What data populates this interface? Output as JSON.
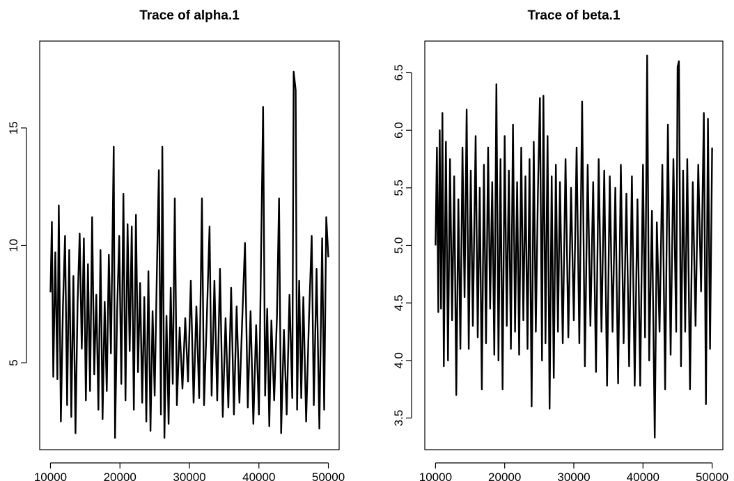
{
  "chart_data": [
    {
      "type": "line",
      "title": "Trace of alpha.1",
      "xlabel": "",
      "ylabel": "",
      "xlim": [
        8450,
        51550
      ],
      "ylim": [
        1.3,
        18.7
      ],
      "x_ticks": [
        "10000",
        "20000",
        "30000",
        "40000",
        "50000"
      ],
      "y_ticks": [
        "5",
        "10",
        "15"
      ],
      "x_tick_values": [
        10000,
        20000,
        30000,
        40000,
        50000
      ],
      "y_tick_values": [
        5,
        10,
        15
      ],
      "grid": false,
      "series": [
        {
          "values": [
            [
              10000,
              8.0
            ],
            [
              10200,
              11.0
            ],
            [
              10400,
              4.4
            ],
            [
              10700,
              9.7
            ],
            [
              11000,
              4.3
            ],
            [
              11200,
              11.7
            ],
            [
              11500,
              2.5
            ],
            [
              11800,
              7.4
            ],
            [
              12100,
              10.4
            ],
            [
              12400,
              3.2
            ],
            [
              12700,
              9.8
            ],
            [
              13000,
              2.7
            ],
            [
              13300,
              8.7
            ],
            [
              13600,
              2.0
            ],
            [
              13900,
              7.5
            ],
            [
              14200,
              10.5
            ],
            [
              14500,
              5.6
            ],
            [
              14800,
              10.3
            ],
            [
              15100,
              3.4
            ],
            [
              15400,
              9.2
            ],
            [
              15700,
              3.8
            ],
            [
              16000,
              11.2
            ],
            [
              16300,
              4.5
            ],
            [
              16600,
              7.9
            ],
            [
              16900,
              3.0
            ],
            [
              17200,
              9.8
            ],
            [
              17500,
              2.6
            ],
            [
              17800,
              7.6
            ],
            [
              18100,
              3.8
            ],
            [
              18400,
              9.6
            ],
            [
              18700,
              5.4
            ],
            [
              19100,
              14.2
            ],
            [
              19300,
              1.8
            ],
            [
              19600,
              7.2
            ],
            [
              19900,
              10.4
            ],
            [
              20200,
              4.1
            ],
            [
              20500,
              12.2
            ],
            [
              20800,
              3.4
            ],
            [
              21100,
              10.9
            ],
            [
              21400,
              5.5
            ],
            [
              21700,
              10.8
            ],
            [
              22000,
              3.0
            ],
            [
              22300,
              11.3
            ],
            [
              22600,
              4.6
            ],
            [
              22900,
              8.4
            ],
            [
              23200,
              3.3
            ],
            [
              23500,
              7.8
            ],
            [
              23800,
              2.5
            ],
            [
              24100,
              8.9
            ],
            [
              24400,
              2.1
            ],
            [
              24700,
              7.2
            ],
            [
              25000,
              3.6
            ],
            [
              25300,
              8.6
            ],
            [
              25600,
              13.2
            ],
            [
              25900,
              2.8
            ],
            [
              26100,
              14.2
            ],
            [
              26400,
              1.8
            ],
            [
              26700,
              7.0
            ],
            [
              27000,
              2.4
            ],
            [
              27300,
              8.2
            ],
            [
              27600,
              4.1
            ],
            [
              27900,
              12.0
            ],
            [
              28200,
              3.2
            ],
            [
              28600,
              6.5
            ],
            [
              29000,
              3.9
            ],
            [
              29400,
              6.9
            ],
            [
              29800,
              4.2
            ],
            [
              30200,
              8.5
            ],
            [
              30600,
              3.3
            ],
            [
              31000,
              7.4
            ],
            [
              31400,
              3.5
            ],
            [
              31800,
              12.0
            ],
            [
              32100,
              3.2
            ],
            [
              32500,
              6.8
            ],
            [
              32900,
              10.8
            ],
            [
              33200,
              3.6
            ],
            [
              33600,
              8.5
            ],
            [
              34000,
              3.4
            ],
            [
              34400,
              9.0
            ],
            [
              34800,
              2.7
            ],
            [
              35200,
              6.9
            ],
            [
              35600,
              3.1
            ],
            [
              36000,
              8.2
            ],
            [
              36400,
              2.8
            ],
            [
              36800,
              7.4
            ],
            [
              37200,
              3.3
            ],
            [
              37600,
              6.8
            ],
            [
              38000,
              10.1
            ],
            [
              38400,
              3.1
            ],
            [
              38800,
              7.2
            ],
            [
              39200,
              2.4
            ],
            [
              39600,
              6.6
            ],
            [
              40000,
              2.8
            ],
            [
              40300,
              9.4
            ],
            [
              40600,
              15.9
            ],
            [
              40900,
              3.6
            ],
            [
              41200,
              7.3
            ],
            [
              41500,
              2.3
            ],
            [
              41800,
              6.8
            ],
            [
              42200,
              3.4
            ],
            [
              42600,
              7.0
            ],
            [
              42900,
              12.0
            ],
            [
              43200,
              2.0
            ],
            [
              43600,
              6.4
            ],
            [
              44000,
              2.8
            ],
            [
              44400,
              7.9
            ],
            [
              44800,
              3.5
            ],
            [
              45000,
              17.4
            ],
            [
              45300,
              16.6
            ],
            [
              45500,
              3.0
            ],
            [
              45800,
              8.5
            ],
            [
              46100,
              3.5
            ],
            [
              46400,
              7.8
            ],
            [
              46800,
              2.5
            ],
            [
              47200,
              6.8
            ],
            [
              47600,
              10.4
            ],
            [
              47900,
              3.2
            ],
            [
              48300,
              9.0
            ],
            [
              48700,
              2.2
            ],
            [
              49100,
              10.3
            ],
            [
              49400,
              3.0
            ],
            [
              49700,
              11.2
            ],
            [
              50000,
              9.5
            ]
          ]
        }
      ]
    },
    {
      "type": "line",
      "title": "Trace of beta.1",
      "xlabel": "",
      "ylabel": "",
      "xlim": [
        8450,
        51550
      ],
      "ylim": [
        3.225,
        6.775
      ],
      "x_ticks": [
        "10000",
        "20000",
        "30000",
        "40000",
        "50000"
      ],
      "y_ticks": [
        "3.5",
        "4.0",
        "4.5",
        "5.0",
        "5.5",
        "6.0",
        "6.5"
      ],
      "x_tick_values": [
        10000,
        20000,
        30000,
        40000,
        50000
      ],
      "y_tick_values": [
        3.5,
        4.0,
        4.5,
        5.0,
        5.5,
        6.0,
        6.5
      ],
      "grid": false,
      "series": [
        {
          "values": [
            [
              10000,
              5.0
            ],
            [
              10200,
              5.85
            ],
            [
              10400,
              4.42
            ],
            [
              10600,
              6.0
            ],
            [
              10800,
              4.45
            ],
            [
              11000,
              6.15
            ],
            [
              11200,
              3.95
            ],
            [
              11500,
              5.9
            ],
            [
              11800,
              4.0
            ],
            [
              12100,
              5.75
            ],
            [
              12400,
              4.35
            ],
            [
              12700,
              5.6
            ],
            [
              13000,
              3.7
            ],
            [
              13300,
              5.4
            ],
            [
              13600,
              4.1
            ],
            [
              13900,
              5.85
            ],
            [
              14200,
              4.55
            ],
            [
              14500,
              6.18
            ],
            [
              14800,
              4.1
            ],
            [
              15100,
              5.65
            ],
            [
              15400,
              4.3
            ],
            [
              15800,
              5.95
            ],
            [
              16100,
              4.2
            ],
            [
              16400,
              5.5
            ],
            [
              16700,
              3.75
            ],
            [
              17000,
              5.7
            ],
            [
              17300,
              4.15
            ],
            [
              17600,
              5.85
            ],
            [
              17900,
              4.45
            ],
            [
              18200,
              5.55
            ],
            [
              18500,
              4.05
            ],
            [
              18800,
              6.4
            ],
            [
              19100,
              4.0
            ],
            [
              19400,
              5.75
            ],
            [
              19700,
              3.75
            ],
            [
              20000,
              5.95
            ],
            [
              20300,
              4.3
            ],
            [
              20600,
              5.65
            ],
            [
              20900,
              4.1
            ],
            [
              21200,
              6.05
            ],
            [
              21500,
              4.25
            ],
            [
              21800,
              5.55
            ],
            [
              22100,
              4.05
            ],
            [
              22400,
              5.85
            ],
            [
              22700,
              4.35
            ],
            [
              23000,
              5.6
            ],
            [
              23300,
              4.1
            ],
            [
              23600,
              5.75
            ],
            [
              23900,
              3.6
            ],
            [
              24200,
              5.9
            ],
            [
              24500,
              4.25
            ],
            [
              24800,
              5.45
            ],
            [
              25100,
              6.28
            ],
            [
              25400,
              4.0
            ],
            [
              25600,
              6.3
            ],
            [
              25900,
              4.15
            ],
            [
              26200,
              5.95
            ],
            [
              26500,
              3.58
            ],
            [
              26800,
              5.6
            ],
            [
              27100,
              3.85
            ],
            [
              27400,
              5.7
            ],
            [
              27700,
              4.25
            ],
            [
              28000,
              5.55
            ],
            [
              28400,
              4.15
            ],
            [
              28800,
              5.75
            ],
            [
              29200,
              4.2
            ],
            [
              29600,
              5.5
            ],
            [
              30000,
              4.35
            ],
            [
              30400,
              5.85
            ],
            [
              30800,
              4.15
            ],
            [
              31200,
              6.25
            ],
            [
              31600,
              3.95
            ],
            [
              32000,
              5.7
            ],
            [
              32400,
              4.3
            ],
            [
              32800,
              5.55
            ],
            [
              33200,
              3.9
            ],
            [
              33600,
              5.75
            ],
            [
              34000,
              4.25
            ],
            [
              34400,
              5.65
            ],
            [
              34800,
              3.78
            ],
            [
              35200,
              5.6
            ],
            [
              35600,
              4.25
            ],
            [
              36000,
              5.5
            ],
            [
              36400,
              3.8
            ],
            [
              36800,
              5.7
            ],
            [
              37200,
              4.15
            ],
            [
              37600,
              5.45
            ],
            [
              38000,
              3.95
            ],
            [
              38400,
              5.6
            ],
            [
              38800,
              3.78
            ],
            [
              39200,
              5.4
            ],
            [
              39600,
              3.78
            ],
            [
              40000,
              5.7
            ],
            [
              40300,
              4.2
            ],
            [
              40600,
              6.65
            ],
            [
              40900,
              4.0
            ],
            [
              41300,
              5.3
            ],
            [
              41700,
              3.33
            ],
            [
              42000,
              5.2
            ],
            [
              42400,
              4.25
            ],
            [
              42800,
              5.7
            ],
            [
              43200,
              3.75
            ],
            [
              43600,
              6.05
            ],
            [
              44000,
              4.05
            ],
            [
              44400,
              5.75
            ],
            [
              44800,
              4.25
            ],
            [
              45000,
              6.55
            ],
            [
              45200,
              6.6
            ],
            [
              45500,
              3.95
            ],
            [
              45800,
              5.65
            ],
            [
              46100,
              4.25
            ],
            [
              46400,
              5.75
            ],
            [
              46800,
              3.75
            ],
            [
              47200,
              5.55
            ],
            [
              47600,
              4.3
            ],
            [
              48000,
              5.7
            ],
            [
              48400,
              4.6
            ],
            [
              48800,
              6.15
            ],
            [
              49100,
              3.62
            ],
            [
              49400,
              6.1
            ],
            [
              49700,
              4.1
            ],
            [
              50000,
              5.85
            ]
          ]
        }
      ]
    }
  ]
}
